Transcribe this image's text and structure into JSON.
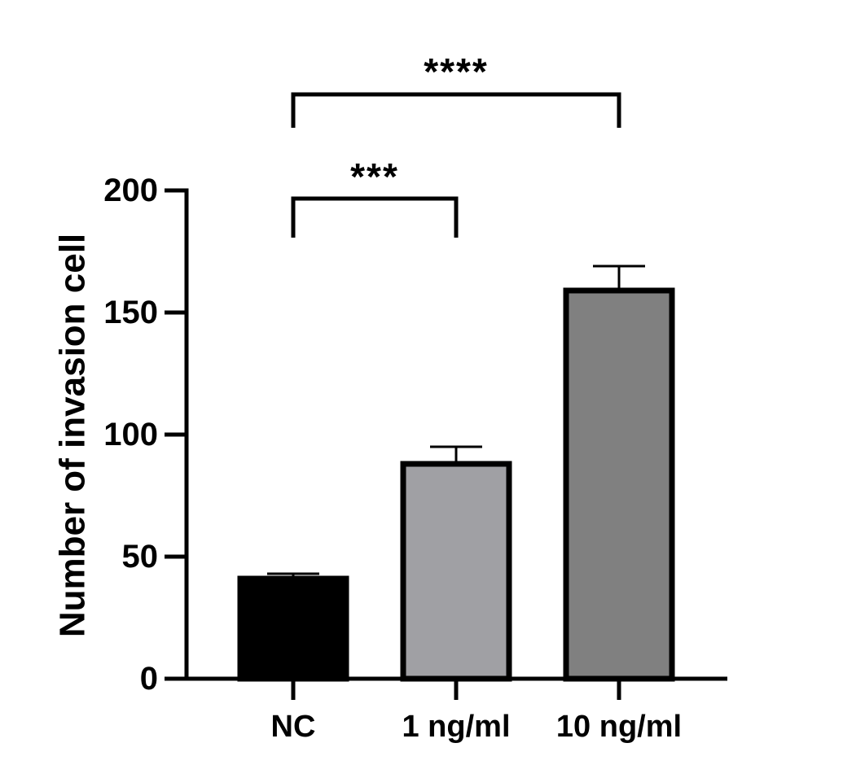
{
  "chart_data": {
    "type": "bar",
    "title": "",
    "xlabel": "",
    "ylabel": "Number of invasion cell",
    "ylim": [
      0,
      200
    ],
    "yticks": [
      0,
      50,
      100,
      150,
      200
    ],
    "ytick_labels": [
      "0",
      "50",
      "100",
      "150",
      "200"
    ],
    "categories": [
      "NC",
      "1 ng/ml",
      "10 ng/ml"
    ],
    "values": [
      41,
      88,
      159
    ],
    "error_upper": [
      43,
      95,
      169
    ],
    "bar_colors": [
      "#000000",
      "#a0a0a4",
      "#808080"
    ],
    "significance": [
      {
        "from": "NC",
        "to": "1 ng/ml",
        "label": "***"
      },
      {
        "from": "NC",
        "to": "10 ng/ml",
        "label": "****"
      }
    ],
    "grid": false
  }
}
